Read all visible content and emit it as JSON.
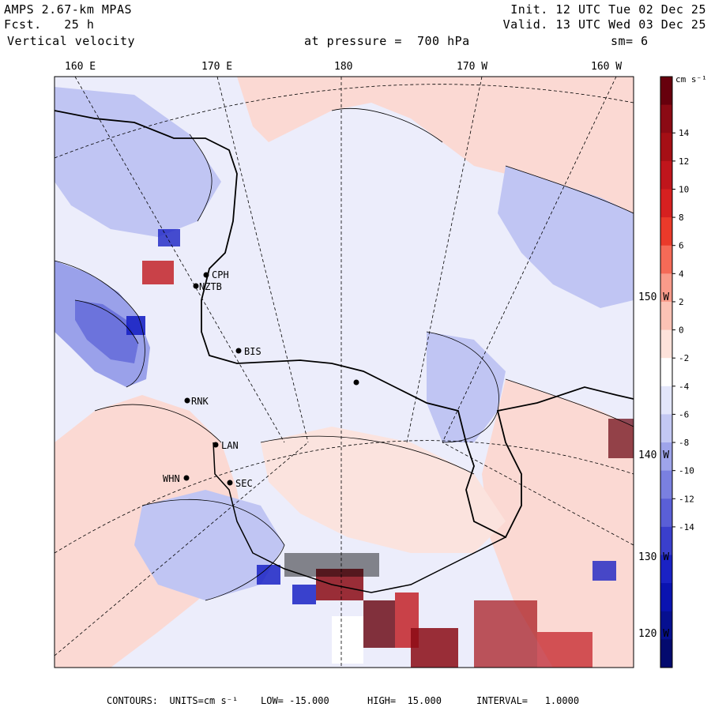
{
  "header": {
    "model": "AMPS 2.67-km MPAS",
    "forecast": "Fcst.   25 h",
    "field": "Vertical velocity",
    "init": "Init. 12 UTC Tue 02 Dec 25",
    "valid": "Valid. 13 UTC Wed 03 Dec 25",
    "pressure": "at pressure =  700 hPa",
    "smooth": "sm= 6"
  },
  "lon_labels": [
    "160 E",
    "170 E",
    "180",
    "170 W",
    "160 W"
  ],
  "lat_labels": [
    "150 W",
    "140 W",
    "130 W",
    "120 W"
  ],
  "colorbar": {
    "units_label": "cm s⁻¹",
    "ticks": [
      "14",
      "12",
      "10",
      "8",
      "6",
      "4",
      "2",
      "0",
      "-2",
      "-4",
      "-6",
      "-8",
      "-10",
      "-12",
      "-14"
    ],
    "colors": [
      "#67000d",
      "#8b0a14",
      "#a50f15",
      "#c0151c",
      "#d62020",
      "#ea3a2a",
      "#f56a57",
      "#f99b8a",
      "#fcc2b5",
      "#fde2da",
      "#ffffff",
      "#e3e6fb",
      "#c3c8f3",
      "#9ea4ea",
      "#7a80e0",
      "#5a5fd6",
      "#3a3fcc",
      "#1a22c4",
      "#0a13b0",
      "#061090",
      "#030a6e"
    ]
  },
  "stations": [
    {
      "name": "CPH"
    },
    {
      "name": "NZTB"
    },
    {
      "name": "BIS"
    },
    {
      "name": "RNK"
    },
    {
      "name": "LAN"
    },
    {
      "name": "WHN"
    },
    {
      "name": "SEC"
    }
  ],
  "footer": {
    "contours": "CONTOURS:  UNITS=cm s⁻¹",
    "low": "LOW= -15.000",
    "high": "HIGH=  15.000",
    "interval": "INTERVAL=   1.0000"
  },
  "colors": {
    "background": "#ecedfb",
    "positive": "#fbd3cc",
    "negative": "#aeb3ef"
  }
}
